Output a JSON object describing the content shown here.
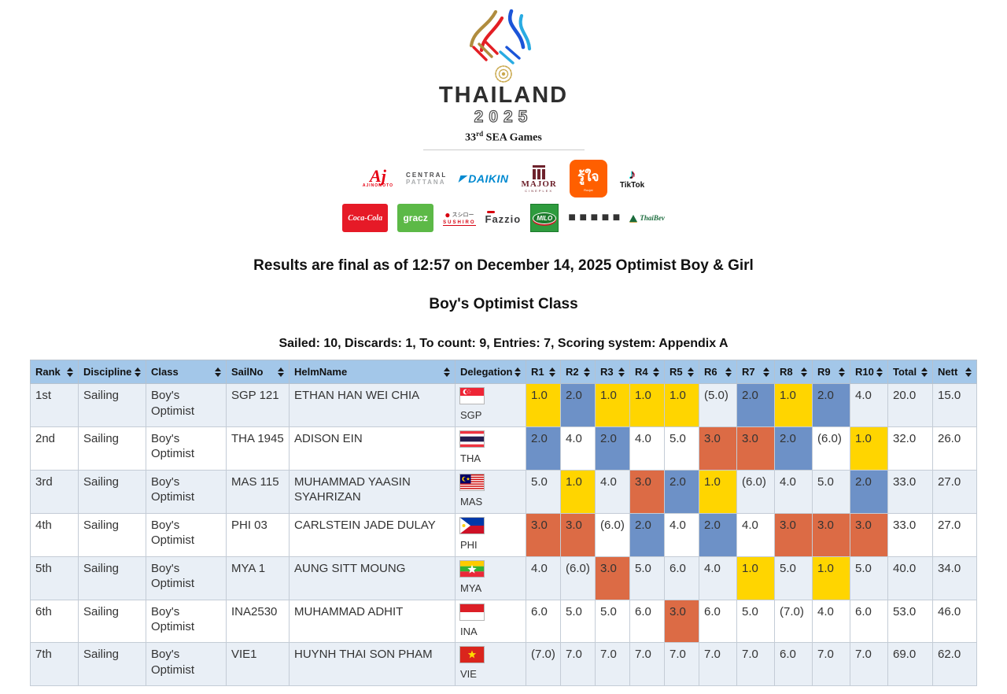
{
  "logo": {
    "title": "THAILAND",
    "year": "2025",
    "edition_number": "33",
    "edition_suffix": "rd",
    "edition_rest": " SEA Games"
  },
  "sponsors": {
    "row1": [
      {
        "id": "ajinomoto",
        "label": "AJINOMOTO",
        "script": "Aj"
      },
      {
        "id": "central-pattana",
        "label": "CENTRAL PATTANA",
        "line1": "CENTRAL",
        "line2": "PATTANA"
      },
      {
        "id": "daikin",
        "label": "DAIKIN"
      },
      {
        "id": "major-cineplex",
        "label": "MAJOR",
        "sub": "CINEPLEX"
      },
      {
        "id": "roojai",
        "label": "รู้ใจ",
        "sub": "Roojai"
      },
      {
        "id": "tiktok",
        "label": "TikTok"
      }
    ],
    "row2": [
      {
        "id": "coca-cola",
        "label": "Coca-Cola"
      },
      {
        "id": "gracz",
        "label": "gracz"
      },
      {
        "id": "sushiro",
        "label": "SUSHIRO",
        "top": "スシロー"
      },
      {
        "id": "fazzio",
        "label": "Fazzio"
      },
      {
        "id": "milo",
        "label": "MILO"
      },
      {
        "id": "purple-sponsor",
        "label": ""
      },
      {
        "id": "thaibev",
        "label": "ThaiBev"
      }
    ]
  },
  "headings": {
    "results_final": "Results are final as of 12:57 on December 14, 2025 Optimist Boy & Girl",
    "class_title": "Boy's Optimist Class",
    "series_summary": "Sailed: 10, Discards: 1, To count: 9, Entries: 7, Scoring system: Appendix A"
  },
  "table": {
    "columns": [
      "Rank",
      "Discipline",
      "Class",
      "SailNo",
      "HelmName",
      "Delegation",
      "R1",
      "R2",
      "R3",
      "R4",
      "R5",
      "R6",
      "R7",
      "R8",
      "R9",
      "R10",
      "Total",
      "Nett"
    ],
    "rows": [
      {
        "rank": "1st",
        "discipline": "Sailing",
        "class": "Boy's Optimist",
        "sailno": "SGP 121",
        "helm": "ETHAN HAN WEI CHIA",
        "delegation": "SGP",
        "scores": [
          "1.0",
          "2.0",
          "1.0",
          "1.0",
          "1.0",
          "(5.0)",
          "2.0",
          "1.0",
          "2.0",
          "4.0"
        ],
        "total": "20.0",
        "nett": "15.0"
      },
      {
        "rank": "2nd",
        "discipline": "Sailing",
        "class": "Boy's Optimist",
        "sailno": "THA 1945",
        "helm": "ADISON EIN",
        "delegation": "THA",
        "scores": [
          "2.0",
          "4.0",
          "2.0",
          "4.0",
          "5.0",
          "3.0",
          "3.0",
          "2.0",
          "(6.0)",
          "1.0"
        ],
        "total": "32.0",
        "nett": "26.0"
      },
      {
        "rank": "3rd",
        "discipline": "Sailing",
        "class": "Boy's Optimist",
        "sailno": "MAS 115",
        "helm": "MUHAMMAD YAASIN SYAHRIZAN",
        "delegation": "MAS",
        "scores": [
          "5.0",
          "1.0",
          "4.0",
          "3.0",
          "2.0",
          "1.0",
          "(6.0)",
          "4.0",
          "5.0",
          "2.0"
        ],
        "total": "33.0",
        "nett": "27.0"
      },
      {
        "rank": "4th",
        "discipline": "Sailing",
        "class": "Boy's Optimist",
        "sailno": "PHI 03",
        "helm": "CARLSTEIN JADE DULAY",
        "delegation": "PHI",
        "scores": [
          "3.0",
          "3.0",
          "(6.0)",
          "2.0",
          "4.0",
          "2.0",
          "4.0",
          "3.0",
          "3.0",
          "3.0"
        ],
        "total": "33.0",
        "nett": "27.0"
      },
      {
        "rank": "5th",
        "discipline": "Sailing",
        "class": "Boy's Optimist",
        "sailno": "MYA 1",
        "helm": "AUNG SITT MOUNG",
        "delegation": "MYA",
        "scores": [
          "4.0",
          "(6.0)",
          "3.0",
          "5.0",
          "6.0",
          "4.0",
          "1.0",
          "5.0",
          "1.0",
          "5.0"
        ],
        "total": "40.0",
        "nett": "34.0"
      },
      {
        "rank": "6th",
        "discipline": "Sailing",
        "class": "Boy's Optimist",
        "sailno": "INA2530",
        "helm": "MUHAMMAD ADHIT",
        "delegation": "INA",
        "scores": [
          "6.0",
          "5.0",
          "5.0",
          "6.0",
          "3.0",
          "6.0",
          "5.0",
          "(7.0)",
          "4.0",
          "6.0"
        ],
        "total": "53.0",
        "nett": "46.0"
      },
      {
        "rank": "7th",
        "discipline": "Sailing",
        "class": "Boy's Optimist",
        "sailno": "VIE1",
        "helm": "HUYNH THAI SON PHAM",
        "delegation": "VIE",
        "scores": [
          "(7.0)",
          "7.0",
          "7.0",
          "7.0",
          "7.0",
          "7.0",
          "7.0",
          "6.0",
          "7.0",
          "7.0"
        ],
        "total": "69.0",
        "nett": "62.0"
      }
    ]
  },
  "score_highlights": {
    "1.0": "#FFD500",
    "2.0": "#6D91C7",
    "3.0": "#DC6B45"
  },
  "colors": {
    "header_bg": "#A3C7E9",
    "odd_row_bg": "#E9EFF6",
    "even_row_bg": "#FFFFFF"
  }
}
